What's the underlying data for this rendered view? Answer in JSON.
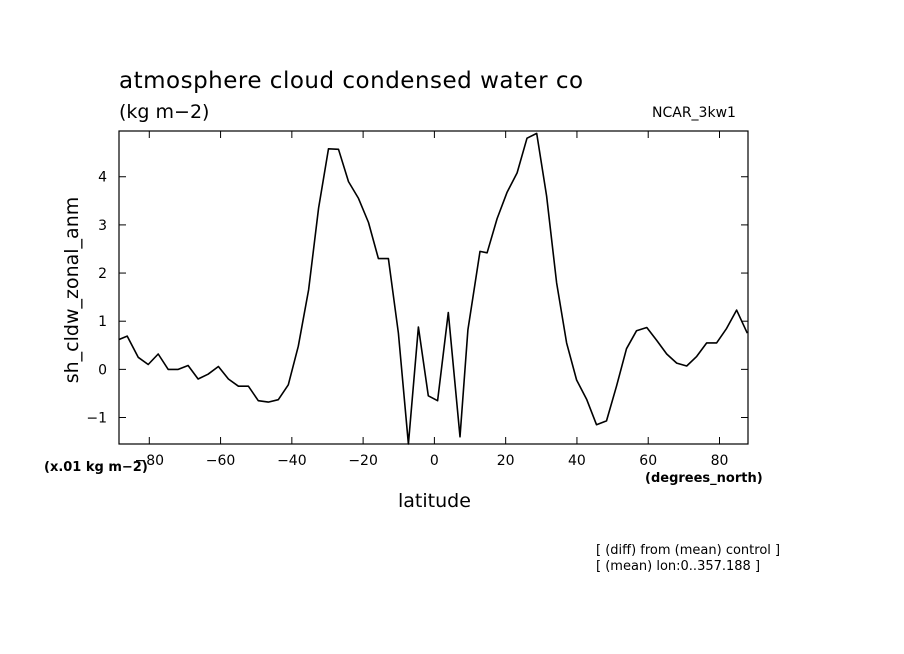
{
  "chart_data": {
    "type": "line",
    "title": "atmosphere cloud condensed water co",
    "subtitle": "(kg m−2)",
    "source_label": "NCAR_3kw1",
    "xlabel": "latitude",
    "x_units": "(degrees_north)",
    "ylabel": "sh_cldw_zonal_anm",
    "y_scale_note": "(x.01 kg m−2)",
    "notes": [
      "[ (diff) from (mean) control ]",
      "[ (mean) lon:0..357.188 ]"
    ],
    "xlim": [
      -88.5,
      88
    ],
    "ylim": [
      -1.55,
      4.95
    ],
    "x_ticks": [
      -80,
      -60,
      -40,
      -20,
      0,
      20,
      40,
      60,
      80
    ],
    "x_tick_labels": [
      "−80",
      "−60",
      "−40",
      "−20",
      "0",
      "20",
      "40",
      "60",
      "80"
    ],
    "y_ticks": [
      -1,
      0,
      1,
      2,
      3,
      4
    ],
    "y_tick_labels": [
      "−1",
      "0",
      "1",
      "2",
      "3",
      "4"
    ],
    "grid": false,
    "series": [
      {
        "x": [
          -88.5,
          -86.2,
          -83.1,
          -80.3,
          -77.5,
          -74.7,
          -71.9,
          -69.1,
          -66.3,
          -63.5,
          -60.6,
          -57.8,
          -55.0,
          -52.2,
          -49.4,
          -46.6,
          -43.8,
          -41.0,
          -38.2,
          -35.3,
          -32.5,
          -29.7,
          -26.9,
          -24.1,
          -21.3,
          -18.5,
          -15.7,
          -12.9,
          -10.1,
          -7.3,
          -4.5,
          -1.7,
          0.9,
          3.9,
          7.2,
          9.4,
          12.8,
          14.8,
          17.6,
          20.4,
          23.2,
          26.0,
          28.7,
          31.5,
          34.3,
          37.1,
          39.9,
          42.7,
          45.5,
          48.3,
          51.1,
          53.9,
          56.7,
          59.6,
          62.4,
          65.2,
          68.0,
          70.8,
          73.6,
          76.4,
          79.2,
          82.0,
          84.8,
          87.8
        ],
        "y": [
          0.62,
          0.69,
          0.25,
          0.1,
          0.32,
          0.0,
          0.0,
          0.08,
          -0.2,
          -0.1,
          0.06,
          -0.2,
          -0.35,
          -0.35,
          -0.65,
          -0.68,
          -0.63,
          -0.32,
          0.48,
          1.65,
          3.35,
          4.58,
          4.57,
          3.9,
          3.55,
          3.05,
          2.3,
          2.3,
          0.75,
          -1.55,
          0.88,
          -0.55,
          -0.65,
          1.18,
          -1.4,
          0.82,
          2.45,
          2.42,
          3.13,
          3.68,
          4.08,
          4.8,
          4.9,
          3.6,
          1.8,
          0.55,
          -0.22,
          -0.62,
          -1.15,
          -1.07,
          -0.35,
          0.43,
          0.8,
          0.87,
          0.6,
          0.32,
          0.13,
          0.07,
          0.27,
          0.55,
          0.55,
          0.85,
          1.23,
          0.75
        ]
      }
    ]
  }
}
